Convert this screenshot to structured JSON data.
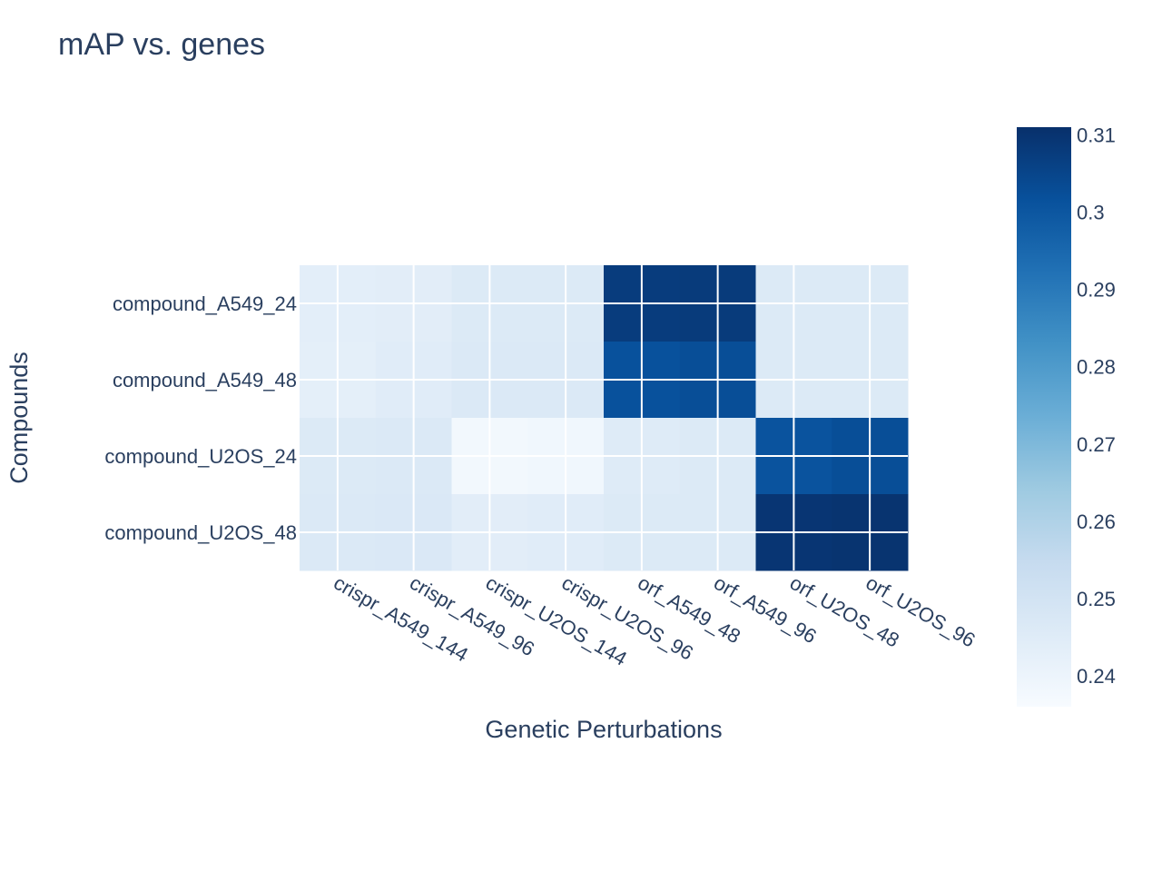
{
  "chart_data": {
    "type": "heatmap",
    "title": "mAP vs. genes",
    "xlabel": "Genetic Perturbations",
    "ylabel": "Compounds",
    "x": [
      "crispr_A549_144",
      "crispr_A549_96",
      "crispr_U2OS_144",
      "crispr_U2OS_96",
      "orf_A549_48",
      "orf_A549_96",
      "orf_U2OS_48",
      "orf_U2OS_96"
    ],
    "y": [
      "compound_A549_24",
      "compound_A549_48",
      "compound_U2OS_24",
      "compound_U2OS_48"
    ],
    "z": [
      [
        0.2435,
        0.244,
        0.246,
        0.246,
        0.3075,
        0.308,
        0.246,
        0.246
      ],
      [
        0.243,
        0.2445,
        0.2465,
        0.2465,
        0.3015,
        0.3025,
        0.246,
        0.246
      ],
      [
        0.246,
        0.2465,
        0.238,
        0.2385,
        0.2455,
        0.246,
        0.301,
        0.3025
      ],
      [
        0.2465,
        0.247,
        0.244,
        0.2445,
        0.246,
        0.246,
        0.3095,
        0.31
      ]
    ],
    "colorscale": "Blues",
    "zmin": 0.236,
    "zmax": 0.311,
    "colorbar": {
      "ticks": [
        "0.24",
        "0.25",
        "0.26",
        "0.27",
        "0.28",
        "0.29",
        "0.3",
        "0.31"
      ]
    },
    "grid": true,
    "legend": "none"
  }
}
